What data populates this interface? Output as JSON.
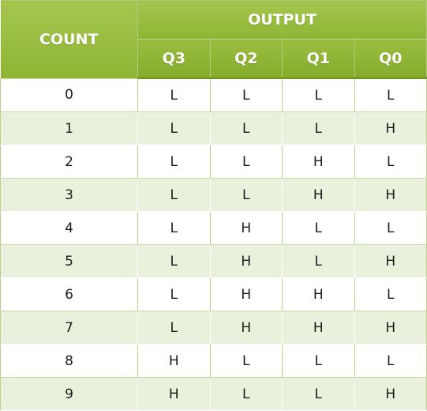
{
  "header": {
    "count_label": "COUNT",
    "output_label": "OUTPUT",
    "columns": [
      "Q3",
      "Q2",
      "Q1",
      "Q0"
    ]
  },
  "rows": [
    {
      "count": "0",
      "q3": "L",
      "q2": "L",
      "q1": "L",
      "q0": "L"
    },
    {
      "count": "1",
      "q3": "L",
      "q2": "L",
      "q1": "L",
      "q0": "H"
    },
    {
      "count": "2",
      "q3": "L",
      "q2": "L",
      "q1": "H",
      "q0": "L"
    },
    {
      "count": "3",
      "q3": "L",
      "q2": "L",
      "q1": "H",
      "q0": "H"
    },
    {
      "count": "4",
      "q3": "L",
      "q2": "H",
      "q1": "L",
      "q0": "L"
    },
    {
      "count": "5",
      "q3": "L",
      "q2": "H",
      "q1": "L",
      "q0": "H"
    },
    {
      "count": "6",
      "q3": "L",
      "q2": "H",
      "q1": "H",
      "q0": "L"
    },
    {
      "count": "7",
      "q3": "L",
      "q2": "H",
      "q1": "H",
      "q0": "H"
    },
    {
      "count": "8",
      "q3": "H",
      "q2": "L",
      "q1": "L",
      "q0": "L"
    },
    {
      "count": "9",
      "q3": "H",
      "q2": "L",
      "q1": "L",
      "q0": "H"
    }
  ],
  "colors": {
    "header_green": "#9abd40",
    "row_stripe": "#e9f0db",
    "row_white": "#ffffff"
  }
}
